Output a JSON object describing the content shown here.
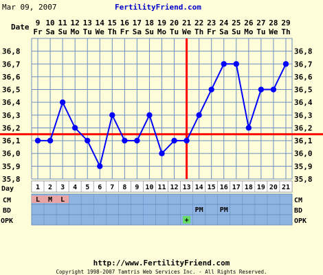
{
  "header": {
    "date_text": "Mar 09, 2007",
    "site_name": "FertilityFriend.com"
  },
  "row_labels": {
    "date": "Date",
    "day": "Day",
    "cm": "CM",
    "bd": "BD",
    "opk": "OPK"
  },
  "dates": [
    {
      "d": "9",
      "w": "Fr"
    },
    {
      "d": "10",
      "w": "Sa"
    },
    {
      "d": "11",
      "w": "Su"
    },
    {
      "d": "12",
      "w": "Mo"
    },
    {
      "d": "13",
      "w": "Tu"
    },
    {
      "d": "14",
      "w": "We"
    },
    {
      "d": "15",
      "w": "Th"
    },
    {
      "d": "16",
      "w": "Fr"
    },
    {
      "d": "17",
      "w": "Sa"
    },
    {
      "d": "18",
      "w": "Su"
    },
    {
      "d": "19",
      "w": "Mo"
    },
    {
      "d": "20",
      "w": "Tu"
    },
    {
      "d": "21",
      "w": "We"
    },
    {
      "d": "22",
      "w": "Th"
    },
    {
      "d": "23",
      "w": "Fr"
    },
    {
      "d": "24",
      "w": "Sa"
    },
    {
      "d": "25",
      "w": "Su"
    },
    {
      "d": "26",
      "w": "Mo"
    },
    {
      "d": "27",
      "w": "Tu"
    },
    {
      "d": "28",
      "w": "We"
    },
    {
      "d": "29",
      "w": "Th"
    }
  ],
  "cm_entries": [
    {
      "day": 1,
      "label": "L"
    },
    {
      "day": 2,
      "label": "M"
    },
    {
      "day": 3,
      "label": "L"
    }
  ],
  "bd_entries": [
    {
      "day": 14,
      "label": "PM"
    },
    {
      "day": 16,
      "label": "PM"
    }
  ],
  "opk_entries": [
    {
      "day": 13,
      "label": "+"
    }
  ],
  "footer": {
    "url": "http://www.FertilityFriend.com",
    "copyright": "Copyright 1998-2007 Tamtris Web Services Inc. - All Rights Reserved."
  },
  "colors": {
    "background": "#fffcd9",
    "line": "#0000ff",
    "coverline": "#ff0000",
    "grid": "#6a8fbf",
    "row_fill": "#8fb4e3",
    "cm_fill": "#e8a4a4",
    "opk_fill": "#66dd66"
  },
  "chart_data": {
    "type": "line",
    "x": [
      1,
      2,
      3,
      4,
      5,
      6,
      7,
      8,
      9,
      10,
      11,
      12,
      13,
      14,
      15,
      16,
      17,
      18,
      19,
      20,
      21
    ],
    "series": [
      {
        "values": [
          36.1,
          36.1,
          36.4,
          36.2,
          36.1,
          35.9,
          36.3,
          36.1,
          36.1,
          36.3,
          36.0,
          36.1,
          36.1,
          36.3,
          36.5,
          36.7,
          36.7,
          36.2,
          36.5,
          36.5,
          36.7
        ]
      }
    ],
    "ylim": [
      35.8,
      36.9
    ],
    "y_ticks": [
      "35,8",
      "35,9",
      "36,0",
      "36,1",
      "36,2",
      "36,3",
      "36,4",
      "36,5",
      "36,6",
      "36,7",
      "36,8"
    ],
    "x_ticks": [
      "1",
      "2",
      "3",
      "4",
      "5",
      "6",
      "7",
      "8",
      "9",
      "10",
      "11",
      "12",
      "13",
      "14",
      "15",
      "16",
      "17",
      "18",
      "19",
      "20",
      "21"
    ],
    "coverline": 36.15,
    "ovulation_day": 13,
    "grid": true
  }
}
